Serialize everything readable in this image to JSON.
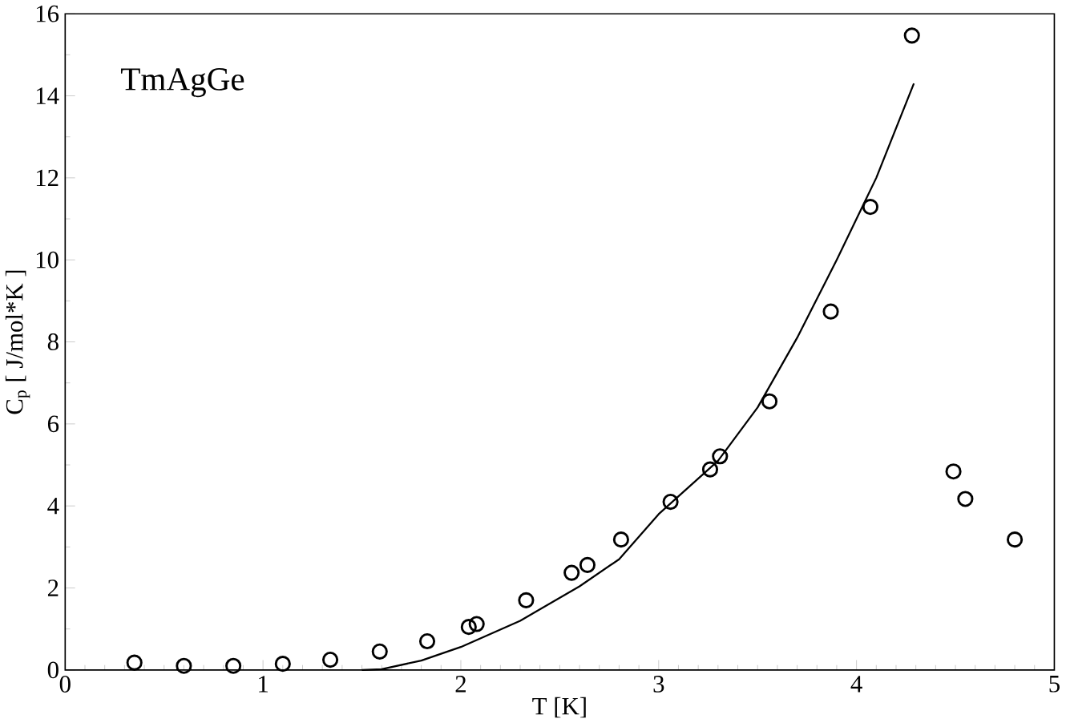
{
  "chart_data": {
    "type": "scatter",
    "xlabel": "T [K]",
    "ylabel": "C$_{p}$ [ J/mol*K ]",
    "annotations": [
      "TmAgGe"
    ],
    "xlim": [
      0,
      5
    ],
    "ylim": [
      0,
      16
    ],
    "xticks": [
      0,
      1,
      2,
      3,
      4,
      5
    ],
    "yticks": [
      0,
      2,
      4,
      6,
      8,
      10,
      12,
      14,
      16
    ],
    "marker": "circle",
    "series": [
      {
        "color": "#000000",
        "x": [
          0.35,
          0.6,
          0.85,
          1.1,
          1.34,
          1.59,
          1.83,
          2.04,
          2.08,
          2.33,
          2.56,
          2.64,
          2.81,
          3.06,
          3.26,
          3.31,
          3.56,
          3.87,
          4.07,
          4.28,
          4.49,
          4.55,
          4.8
        ],
        "values": [
          0.18,
          0.1,
          0.1,
          0.15,
          0.25,
          0.45,
          0.7,
          1.05,
          1.12,
          1.7,
          2.37,
          2.56,
          3.18,
          4.1,
          4.89,
          5.21,
          6.55,
          8.74,
          11.29,
          15.47,
          4.84,
          4.17,
          3.18
        ]
      },
      {
        "type": "line",
        "color": "#000000",
        "marker": "none",
        "line_style": "solid",
        "x": [
          1.5,
          1.6,
          1.8,
          2.0,
          2.3,
          2.6,
          2.8,
          3.0,
          3.3,
          3.5,
          3.7,
          3.9,
          4.1,
          4.29
        ],
        "values": [
          0,
          0.02,
          0.23,
          0.56,
          1.2,
          2.04,
          2.7,
          3.8,
          5.1,
          6.4,
          8.1,
          10.0,
          12.0,
          14.3
        ]
      }
    ]
  }
}
